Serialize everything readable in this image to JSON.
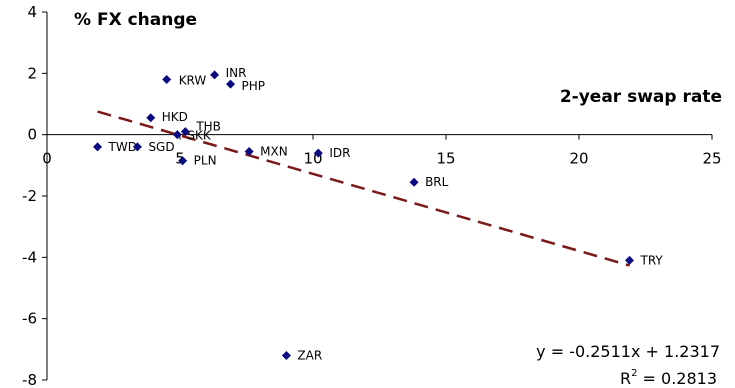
{
  "chart_data": {
    "type": "scatter",
    "title": "",
    "ylabel": "% FX change",
    "xlabel": "2-year swap rate",
    "xlim": [
      0,
      25
    ],
    "ylim": [
      -8,
      4
    ],
    "x_ticks": [
      "0",
      "5",
      "10",
      "15",
      "20",
      "25"
    ],
    "y_ticks": [
      "4",
      "2",
      "0",
      "-2",
      "-4",
      "-6",
      "-8"
    ],
    "points": [
      {
        "label": "KRW",
        "x": 4.5,
        "y": 1.8
      },
      {
        "label": "INR",
        "x": 6.3,
        "y": 1.95
      },
      {
        "label": "PHP",
        "x": 6.9,
        "y": 1.65
      },
      {
        "label": "HKD",
        "x": 3.9,
        "y": 0.55
      },
      {
        "label": "THB",
        "x": 5.2,
        "y": 0.1
      },
      {
        "label": "SKK",
        "x": 4.9,
        "y": 0.0
      },
      {
        "label": "TWD",
        "x": 1.9,
        "y": -0.4
      },
      {
        "label": "SGD",
        "x": 3.4,
        "y": -0.4
      },
      {
        "label": "PLN",
        "x": 5.1,
        "y": -0.85
      },
      {
        "label": "MXN",
        "x": 7.6,
        "y": -0.55
      },
      {
        "label": "IDR",
        "x": 10.2,
        "y": -0.6
      },
      {
        "label": "BRL",
        "x": 13.8,
        "y": -1.55
      },
      {
        "label": "TRY",
        "x": 21.9,
        "y": -4.1
      },
      {
        "label": "ZAR",
        "x": 9.0,
        "y": -7.2
      }
    ],
    "trendline": {
      "slope": -0.2511,
      "intercept": 1.2317,
      "x_range": [
        1.9,
        21.9
      ],
      "color": "#7B1A1A",
      "style": "dashed"
    },
    "equation": "y = -0.2511x + 1.2317",
    "r2_prefix": "R",
    "r2_exponent": "2",
    "r2_value": " = 0.2813",
    "marker_color": "#0A0A80",
    "grid": false,
    "legend": "none"
  }
}
